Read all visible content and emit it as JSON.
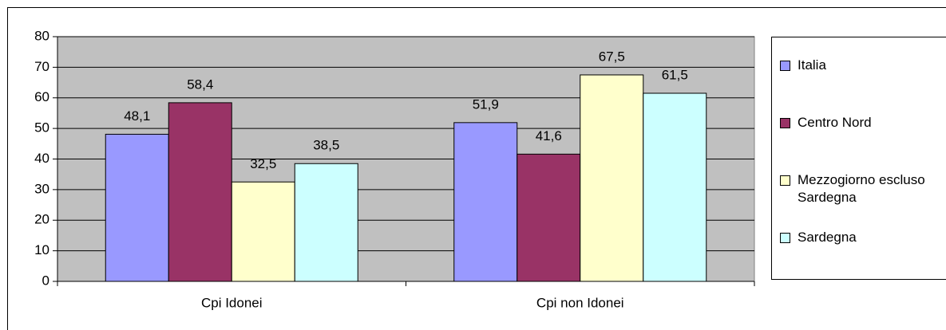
{
  "chart_data": {
    "type": "bar",
    "categories": [
      "Cpi Idonei",
      "Cpi non Idonei"
    ],
    "series": [
      {
        "name": "Italia",
        "color": "#9999ff",
        "values": [
          48.1,
          51.9
        ],
        "value_labels": [
          "48,1",
          "51,9"
        ]
      },
      {
        "name": "Centro Nord",
        "color": "#993366",
        "values": [
          58.4,
          41.6
        ],
        "value_labels": [
          "58,4",
          "41,6"
        ]
      },
      {
        "name": "Mezzogiorno escluso Sardegna",
        "color": "#ffffcc",
        "values": [
          32.5,
          67.5
        ],
        "value_labels": [
          "32,5",
          "67,5"
        ]
      },
      {
        "name": "Sardegna",
        "color": "#ccffff",
        "values": [
          38.5,
          61.5
        ],
        "value_labels": [
          "38,5",
          "61,5"
        ]
      }
    ],
    "ylim": [
      0,
      80
    ],
    "yticks": [
      0,
      10,
      20,
      30,
      40,
      50,
      60,
      70,
      80
    ],
    "grid": true,
    "legend": "right",
    "plot_background": "#c0c0c0"
  }
}
